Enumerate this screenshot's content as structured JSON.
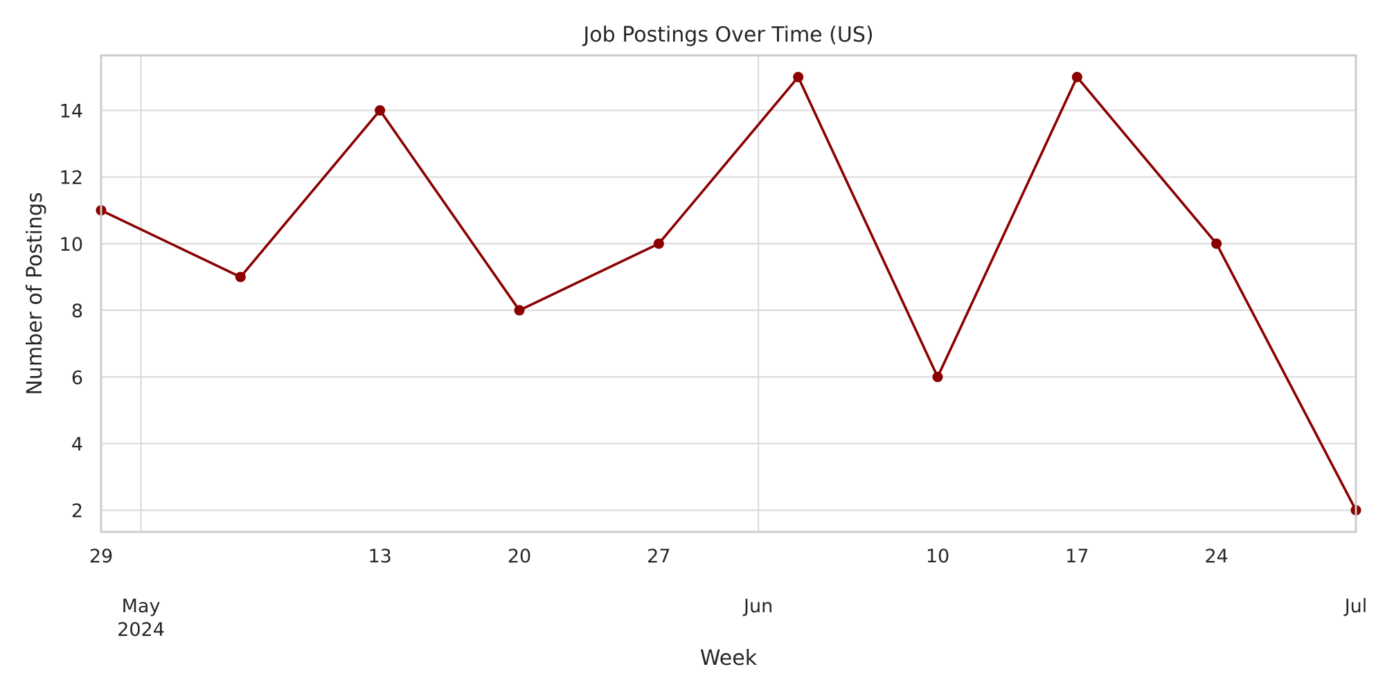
{
  "chart_data": {
    "type": "line",
    "title": "Job Postings Over Time (US)",
    "xlabel": "Week",
    "ylabel": "Number of Postings",
    "x": [
      "2024-04-29",
      "2024-05-06",
      "2024-05-13",
      "2024-05-20",
      "2024-05-27",
      "2024-06-03",
      "2024-06-10",
      "2024-06-17",
      "2024-06-24",
      "2024-07-01"
    ],
    "series": [
      {
        "values": [
          11,
          9,
          14,
          8,
          10,
          15,
          6,
          15,
          10,
          2
        ],
        "color": "#8b0000"
      }
    ],
    "ylim": [
      1.35,
      15.65
    ],
    "xlim": [
      "2024-04-29",
      "2024-07-01"
    ],
    "yticks": [
      2,
      4,
      6,
      8,
      10,
      12,
      14
    ],
    "xticks_minor": [
      {
        "date": "2024-04-29",
        "label": "29"
      },
      {
        "date": "2024-05-13",
        "label": "13"
      },
      {
        "date": "2024-05-20",
        "label": "20"
      },
      {
        "date": "2024-05-27",
        "label": "27"
      },
      {
        "date": "2024-06-10",
        "label": "10"
      },
      {
        "date": "2024-06-17",
        "label": "17"
      },
      {
        "date": "2024-06-24",
        "label": "24"
      }
    ],
    "xticks_major": [
      {
        "date": "2024-05-01",
        "label": "May\n2024"
      },
      {
        "date": "2024-06-01",
        "label": "Jun"
      },
      {
        "date": "2024-07-01",
        "label": "Jul"
      }
    ],
    "grid": true,
    "marker": "circle",
    "colors": {
      "line": "#8b0000",
      "grid": "#d9d9d9",
      "frame": "#cccccc",
      "text": "#262626"
    }
  }
}
